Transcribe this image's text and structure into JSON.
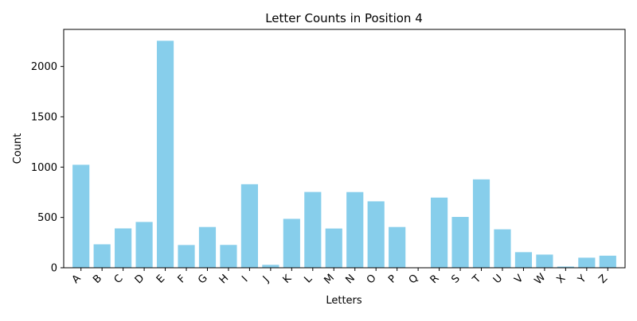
{
  "chart_data": {
    "type": "bar",
    "title": "Letter Counts in Position 4",
    "xlabel": "Letters",
    "ylabel": "Count",
    "categories": [
      "A",
      "B",
      "C",
      "D",
      "E",
      "F",
      "G",
      "H",
      "I",
      "J",
      "K",
      "L",
      "M",
      "N",
      "O",
      "P",
      "Q",
      "R",
      "S",
      "T",
      "U",
      "V",
      "W",
      "X",
      "Y",
      "Z"
    ],
    "values": [
      1023,
      233,
      391,
      455,
      2255,
      226,
      405,
      227,
      830,
      29,
      486,
      753,
      390,
      752,
      660,
      405,
      0,
      697,
      505,
      878,
      382,
      155,
      131,
      12,
      100,
      120
    ],
    "ylim": [
      0,
      2368
    ],
    "yticks": [
      0,
      500,
      1000,
      1500,
      2000
    ],
    "bar_color": "#87ceeb",
    "grid": false,
    "legend": "none"
  }
}
